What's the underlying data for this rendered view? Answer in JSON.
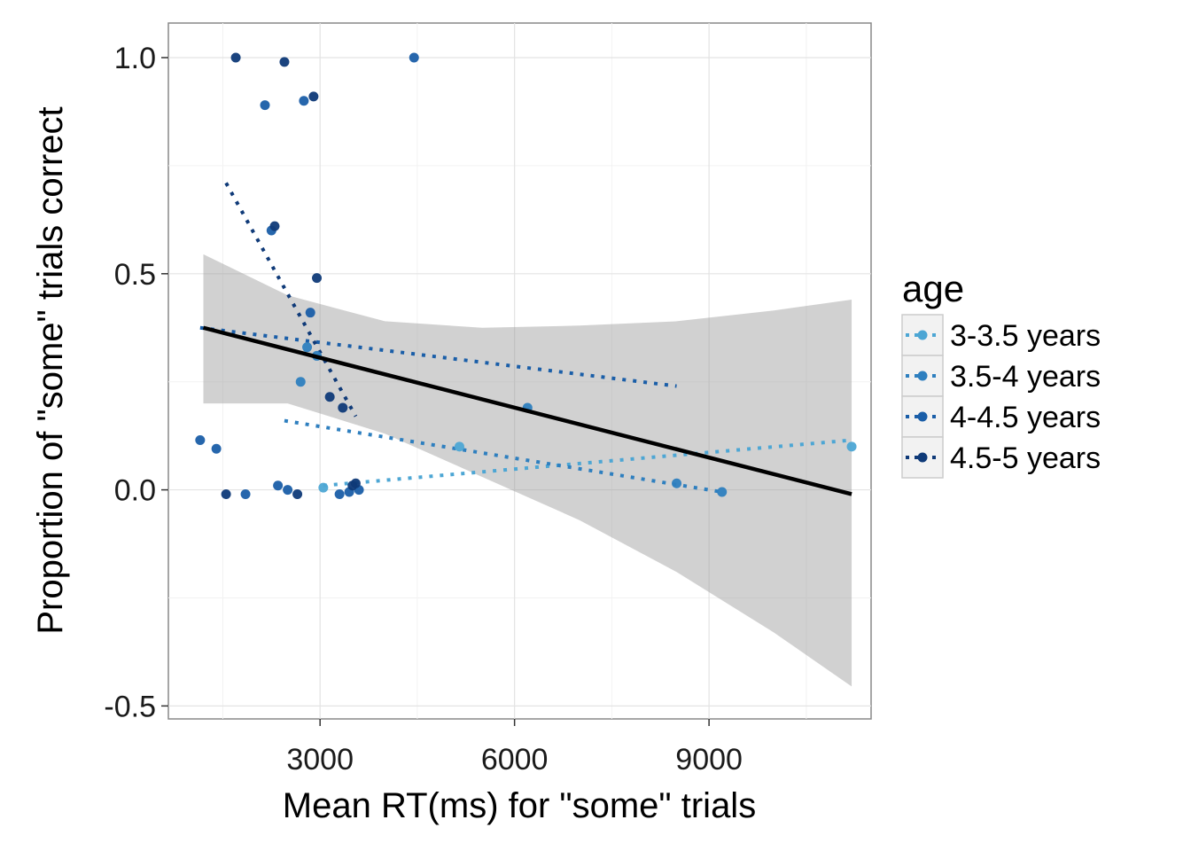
{
  "chart_data": {
    "type": "scatter",
    "xlabel": "Mean RT(ms) for \"some\" trials",
    "ylabel": "Proportion of \"some\" trials correct",
    "xlim": [
      660,
      11500
    ],
    "ylim": [
      -0.53,
      1.08
    ],
    "x_ticks": [
      3000,
      6000,
      9000
    ],
    "x_tick_labels": [
      "3000",
      "6000",
      "9000"
    ],
    "y_ticks": [
      -0.5,
      0.0,
      0.5,
      1.0
    ],
    "y_tick_labels": [
      "-0.5",
      "0.0",
      "0.5",
      "1.0"
    ],
    "grid": true,
    "legend": {
      "title": "age",
      "placement": "right",
      "entries": [
        "3-3.5 years",
        "3.5-4 years",
        "4-4.5 years",
        "4.5-5 years"
      ]
    },
    "series": [
      {
        "name": "3-3.5 years",
        "color": "#4da6d4",
        "points": [
          [
            3050,
            0.005
          ],
          [
            5150,
            0.1
          ],
          [
            11200,
            0.1
          ]
        ],
        "trend": [
          [
            3050,
            0.01
          ],
          [
            11200,
            0.115
          ]
        ]
      },
      {
        "name": "3.5-4 years",
        "color": "#2e7fbf",
        "points": [
          [
            2700,
            0.25
          ],
          [
            2800,
            0.33
          ],
          [
            2950,
            0.31
          ],
          [
            6200,
            0.19
          ],
          [
            8500,
            0.015
          ],
          [
            9200,
            -0.005
          ]
        ],
        "trend": [
          [
            2450,
            0.16
          ],
          [
            9200,
            -0.005
          ]
        ]
      },
      {
        "name": "4-4.5 years",
        "color": "#1a5ea8",
        "points": [
          [
            1150,
            0.115
          ],
          [
            1400,
            0.095
          ],
          [
            1850,
            -0.01
          ],
          [
            2150,
            0.89
          ],
          [
            2250,
            0.6
          ],
          [
            2350,
            0.01
          ],
          [
            2500,
            0.0
          ],
          [
            2750,
            0.9
          ],
          [
            3300,
            -0.01
          ],
          [
            3450,
            -0.005
          ],
          [
            3600,
            0.0
          ],
          [
            4450,
            1.0
          ],
          [
            2850,
            0.41
          ]
        ],
        "trend": [
          [
            1150,
            0.375
          ],
          [
            8500,
            0.24
          ]
        ]
      },
      {
        "name": "4.5-5 years",
        "color": "#0f3a78",
        "points": [
          [
            1550,
            -0.01
          ],
          [
            1700,
            1.0
          ],
          [
            2450,
            0.99
          ],
          [
            2300,
            0.61
          ],
          [
            2900,
            0.91
          ],
          [
            2950,
            0.49
          ],
          [
            2650,
            -0.01
          ],
          [
            3150,
            0.215
          ],
          [
            3350,
            0.19
          ],
          [
            3500,
            0.01
          ],
          [
            3550,
            0.015
          ]
        ],
        "trend": [
          [
            1550,
            0.71
          ],
          [
            3550,
            0.17
          ]
        ]
      }
    ],
    "overall_fit": {
      "color": "#000000",
      "line": [
        [
          1200,
          0.375
        ],
        [
          11200,
          -0.01
        ]
      ],
      "ci_upper": [
        [
          1200,
          0.545
        ],
        [
          2500,
          0.45
        ],
        [
          4000,
          0.39
        ],
        [
          5500,
          0.375
        ],
        [
          7000,
          0.38
        ],
        [
          8500,
          0.39
        ],
        [
          10000,
          0.415
        ],
        [
          11200,
          0.44
        ]
      ],
      "ci_lower": [
        [
          1200,
          0.2
        ],
        [
          2500,
          0.2
        ],
        [
          4000,
          0.13
        ],
        [
          5500,
          0.03
        ],
        [
          7000,
          -0.07
        ],
        [
          8500,
          -0.19
        ],
        [
          10000,
          -0.33
        ],
        [
          11200,
          -0.455
        ]
      ]
    }
  }
}
